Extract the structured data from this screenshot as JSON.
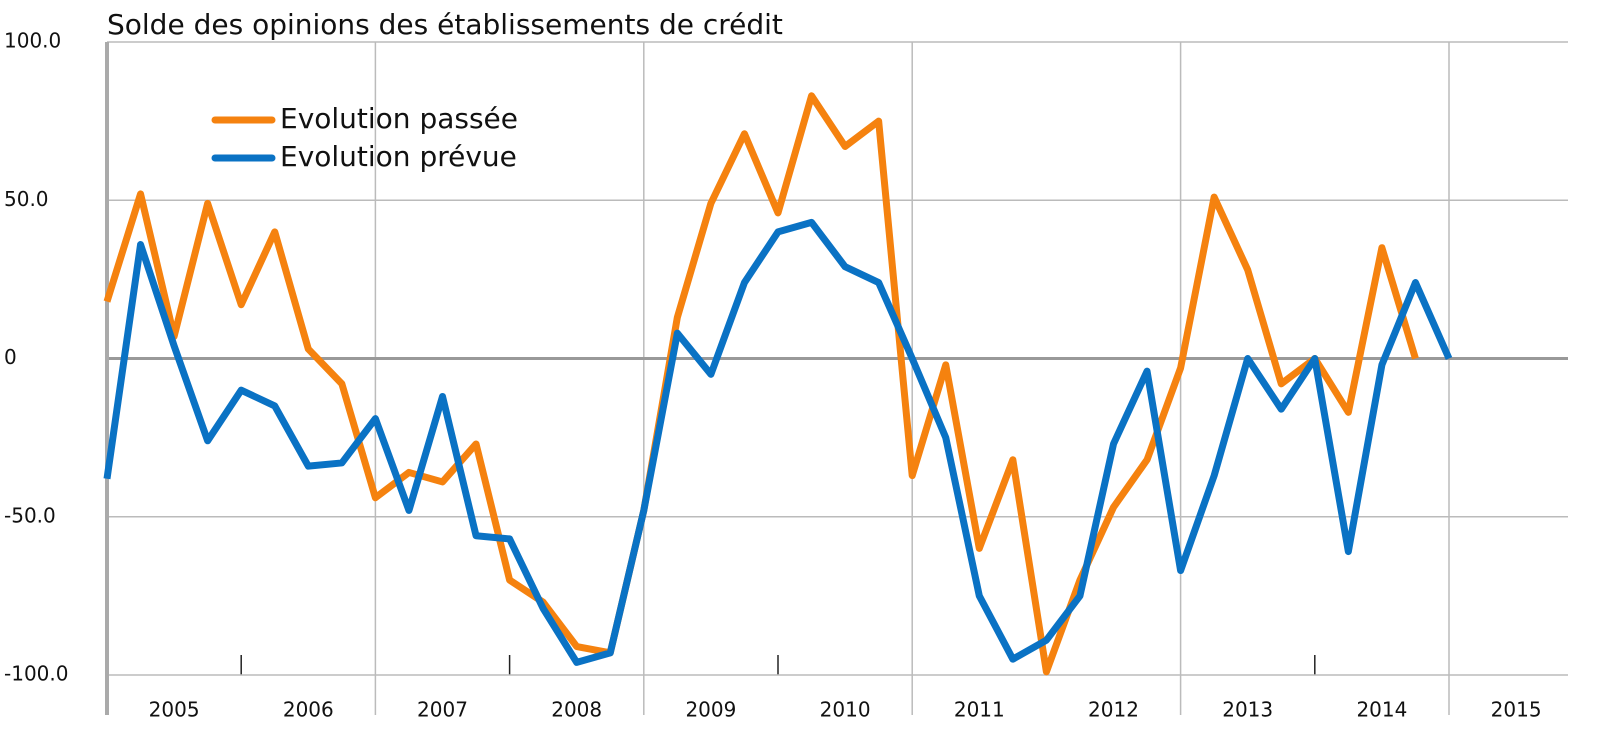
{
  "chart_data": {
    "type": "line",
    "title": "Solde des opinions des établissements de crédit",
    "year_labels": [
      "2005",
      "2006",
      "2007",
      "2008",
      "2009",
      "2010",
      "2011",
      "2012",
      "2013",
      "2014",
      "2015"
    ],
    "series": [
      {
        "name": "Evolution passée",
        "color": "#f5820f",
        "values": [
          18,
          52,
          7,
          49,
          17,
          40,
          3,
          -8,
          -44,
          -36,
          -39,
          -27,
          -70,
          -77,
          -91,
          -93,
          -48,
          13,
          49,
          71,
          46,
          83,
          67,
          75,
          -37,
          -2,
          -60,
          -32,
          -99,
          -70,
          -47,
          -32,
          -3,
          51,
          28,
          -8,
          0,
          -17,
          35,
          0,
          null
        ]
      },
      {
        "name": "Evolution prévue",
        "color": "#0a72c4",
        "values": [
          -38,
          36,
          4,
          -26,
          -10,
          -15,
          -34,
          -33,
          -19,
          -48,
          -12,
          -56,
          -57,
          -79,
          -96,
          -93,
          -48,
          8,
          -5,
          24,
          40,
          43,
          29,
          24,
          0,
          -25,
          -75,
          -95,
          -89,
          -75,
          -27,
          -4,
          -67,
          -37,
          0,
          -16,
          0,
          -61,
          -2,
          24,
          0
        ]
      }
    ],
    "ylim": [
      -100,
      100
    ],
    "yticks": [
      {
        "value": -100,
        "label": "-100.0"
      },
      {
        "value": -50,
        "label": "-50.0"
      },
      0,
      {
        "value": 50,
        "label": "50.0"
      },
      {
        "value": 100,
        "label": "100.0"
      }
    ],
    "grid": true,
    "legend": "top-left"
  }
}
